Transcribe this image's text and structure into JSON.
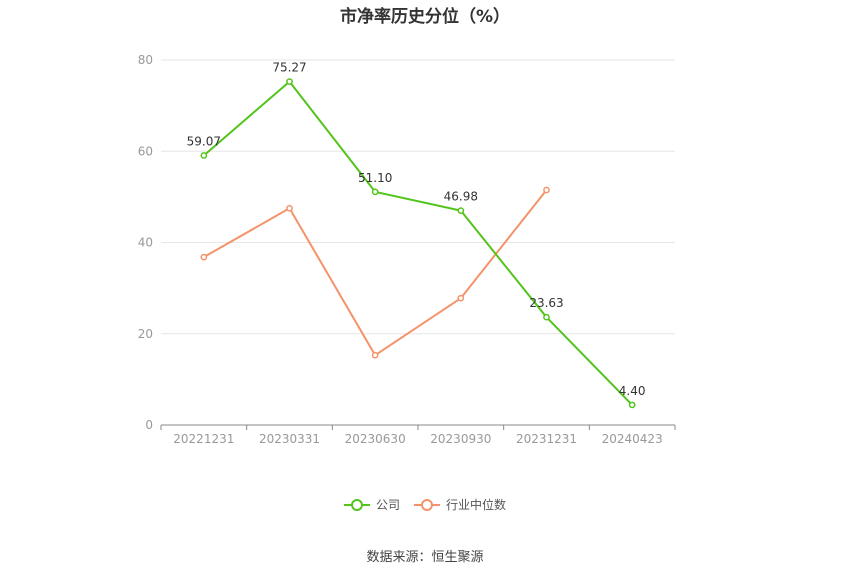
{
  "chart_data": {
    "type": "line",
    "title": "市净率历史分位（%）",
    "categories": [
      "20221231",
      "20230331",
      "20230630",
      "20230930",
      "20231231",
      "20240423"
    ],
    "ylim": [
      0,
      80
    ],
    "yticks": [
      "0",
      "20",
      "40",
      "60",
      "80"
    ],
    "grid": true,
    "legend_position": "bottom",
    "series": [
      {
        "name": "公司",
        "color": "#52c41a",
        "values": [
          59.07,
          75.27,
          51.1,
          46.98,
          23.63,
          4.4
        ],
        "labels": [
          "59.07",
          "75.27",
          "51.10",
          "46.98",
          "23.63",
          "4.40"
        ]
      },
      {
        "name": "行业中位数",
        "color": "#f4936a",
        "values": [
          36.8,
          47.5,
          15.3,
          27.8,
          51.5,
          null
        ]
      }
    ]
  },
  "source_text": "数据来源：恒生聚源"
}
